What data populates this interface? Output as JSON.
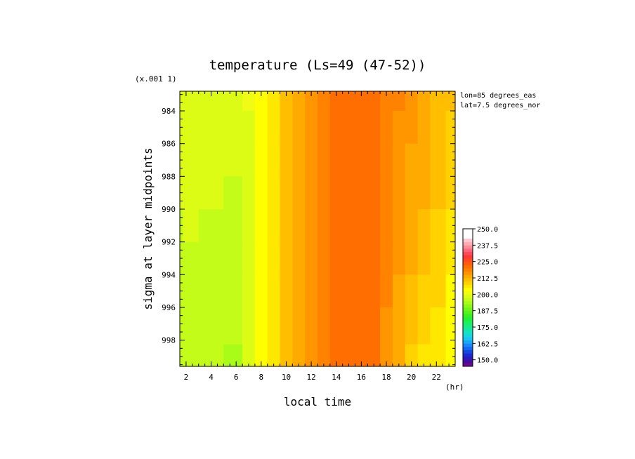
{
  "chart_data": {
    "type": "heatmap",
    "title": "temperature (Ls=49 (47-52))",
    "xlabel": "local time",
    "ylabel": "sigma at layer midpoints",
    "x_unit": "(hr)",
    "y_scale_note": "(x.001 1)",
    "annotations": [
      "lon=85 degrees_eas",
      "lat=7.5 degrees_nor"
    ],
    "x_ticks": [
      2,
      4,
      6,
      8,
      10,
      12,
      14,
      16,
      18,
      20,
      22
    ],
    "y_ticks": [
      984,
      986,
      988,
      990,
      992,
      994,
      996,
      998
    ],
    "x_range": [
      1.5,
      23.5
    ],
    "y_range": [
      982.8,
      999.6
    ],
    "y_inverted": true,
    "grid": false,
    "colorbar": {
      "levels": [
        145,
        147.5,
        150,
        152.5,
        155,
        157.5,
        160,
        162.5,
        165,
        167.5,
        170,
        172.5,
        175,
        177.5,
        180,
        182.5,
        185,
        187.5,
        190,
        192.5,
        195,
        197.5,
        200,
        202.5,
        205,
        207.5,
        210,
        212.5,
        215,
        217.5,
        220,
        222.5,
        225,
        227.5,
        230,
        232.5,
        235,
        237.5,
        240,
        242.5,
        245,
        247.5,
        250
      ],
      "tick_labels": [
        "150.0",
        "162.5",
        "175.0",
        "187.5",
        "200.0",
        "212.5",
        "225.0",
        "237.5",
        "250.0"
      ],
      "colors": [
        "#6a0a8a",
        "#4a0aa0",
        "#2a1ab8",
        "#1a2ad0",
        "#1446e0",
        "#1466f0",
        "#1888f8",
        "#1aa8f8",
        "#18c4f0",
        "#14d8dc",
        "#12e4c0",
        "#14e8a0",
        "#18ec7c",
        "#1cf05a",
        "#20f03a",
        "#36f020",
        "#52f41c",
        "#6ef418",
        "#8cf818",
        "#a8fc18",
        "#c2fc18",
        "#dcfc16",
        "#f0fc14",
        "#ffff00",
        "#ffe800",
        "#ffd200",
        "#ffbe00",
        "#ffaa00",
        "#ff9600",
        "#ff8200",
        "#ff6e00",
        "#ff5c10",
        "#ff4a24",
        "#ff3838",
        "#ff4a5a",
        "#ff6a7a",
        "#ff8c96",
        "#ffacb4",
        "#ffc8d0"
      ]
    },
    "x": [
      1.5,
      2,
      4,
      6,
      7,
      8,
      9,
      10,
      11,
      12,
      13,
      14,
      15,
      16,
      17,
      18,
      19,
      20,
      21,
      22,
      23.5
    ],
    "y": [
      983,
      985,
      987,
      989,
      991,
      993,
      995,
      997,
      999.5
    ],
    "z": [
      [
        199.0,
        199.5,
        199.5,
        199.5,
        200.0,
        203.0,
        206.5,
        210.0,
        214.0,
        216.0,
        218.0,
        221.0,
        221.5,
        221.5,
        221.5,
        219.0,
        217.5,
        216.5,
        214.0,
        212.0,
        210.0
      ],
      [
        198.5,
        199.5,
        199.0,
        198.5,
        199.0,
        202.5,
        206.0,
        210.0,
        214.0,
        216.0,
        218.0,
        221.0,
        221.5,
        221.5,
        221.0,
        218.5,
        217.0,
        215.0,
        213.5,
        211.5,
        209.0
      ],
      [
        198.0,
        199.0,
        198.5,
        198.0,
        198.5,
        202.5,
        206.0,
        210.0,
        214.0,
        216.0,
        218.0,
        221.0,
        221.5,
        221.5,
        221.0,
        218.5,
        216.5,
        214.5,
        213.0,
        211.0,
        208.5
      ],
      [
        197.5,
        198.5,
        197.5,
        197.0,
        198.0,
        202.5,
        206.0,
        210.0,
        214.0,
        216.0,
        218.0,
        221.0,
        221.5,
        221.5,
        220.5,
        218.0,
        216.0,
        214.0,
        212.5,
        210.5,
        207.5
      ],
      [
        197.0,
        197.5,
        197.0,
        196.5,
        197.5,
        202.5,
        206.0,
        210.0,
        214.0,
        216.0,
        218.0,
        221.0,
        221.5,
        221.5,
        220.5,
        218.0,
        215.5,
        213.5,
        211.5,
        209.5,
        206.5
      ],
      [
        197.0,
        197.0,
        196.5,
        196.0,
        197.5,
        202.5,
        206.0,
        210.0,
        214.0,
        216.0,
        218.0,
        221.0,
        221.5,
        221.5,
        220.5,
        217.5,
        215.0,
        213.0,
        210.5,
        208.5,
        205.5
      ],
      [
        196.5,
        196.5,
        196.0,
        195.5,
        197.5,
        202.5,
        206.0,
        210.0,
        214.0,
        216.0,
        218.0,
        221.0,
        221.5,
        221.5,
        220.5,
        217.5,
        214.5,
        212.0,
        209.5,
        207.5,
        204.5
      ],
      [
        196.0,
        196.0,
        195.5,
        195.0,
        197.5,
        202.5,
        206.0,
        210.0,
        214.0,
        216.0,
        218.0,
        221.0,
        221.5,
        221.5,
        220.5,
        217.0,
        213.5,
        210.5,
        208.5,
        206.0,
        203.5
      ],
      [
        195.5,
        195.5,
        195.0,
        194.5,
        197.5,
        202.5,
        206.0,
        210.0,
        214.0,
        216.0,
        218.0,
        221.0,
        221.5,
        221.5,
        220.5,
        216.5,
        212.5,
        209.5,
        207.0,
        205.0,
        202.5
      ]
    ]
  }
}
